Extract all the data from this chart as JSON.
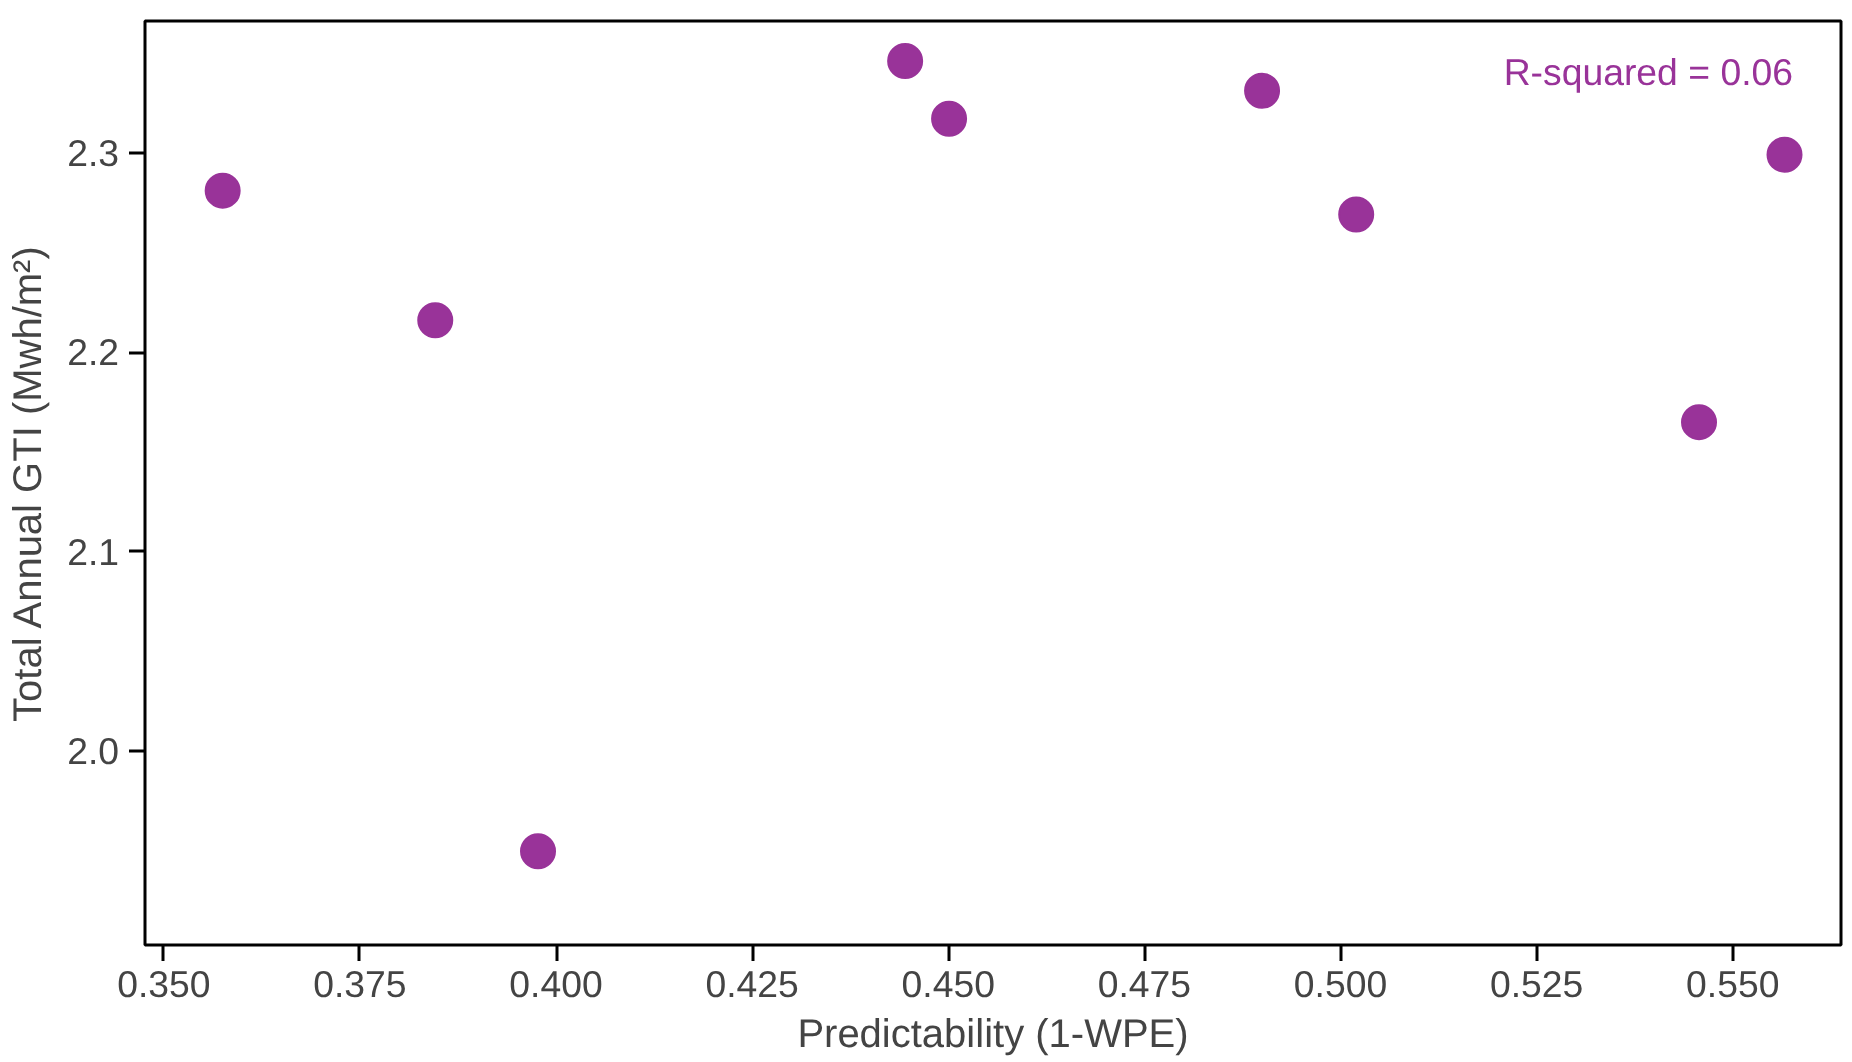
{
  "chart_data": {
    "type": "scatter",
    "xlabel": "Predictability (1-WPE)",
    "ylabel": "Total Annual GTI (Mwh/m²)",
    "x": [
      0.3575,
      0.3846,
      0.3977,
      0.4445,
      0.4501,
      0.49,
      0.502,
      0.5457,
      0.5566
    ],
    "series": [
      {
        "color": "#993399",
        "values": [
          2.281,
          2.216,
          1.95,
          2.346,
          2.317,
          2.331,
          2.269,
          2.165,
          2.299
        ]
      }
    ],
    "xlim": [
      0.3476,
      0.5638
    ],
    "ylim": [
      1.903,
      2.366
    ],
    "xticks": [
      {
        "value": 0.35,
        "label": "0.350"
      },
      {
        "value": 0.375,
        "label": "0.375"
      },
      {
        "value": 0.4,
        "label": "0.400"
      },
      {
        "value": 0.425,
        "label": "0.425"
      },
      {
        "value": 0.45,
        "label": "0.450"
      },
      {
        "value": 0.475,
        "label": "0.475"
      },
      {
        "value": 0.5,
        "label": "0.500"
      },
      {
        "value": 0.525,
        "label": "0.525"
      },
      {
        "value": 0.55,
        "label": "0.550"
      }
    ],
    "yticks": [
      {
        "value": 2.0,
        "label": "2.0"
      },
      {
        "value": 2.1,
        "label": "2.1"
      },
      {
        "value": 2.2,
        "label": "2.2"
      },
      {
        "value": 2.3,
        "label": "2.3"
      }
    ],
    "annotations": [
      "R-squared = 0.06"
    ],
    "grid": false,
    "marker": "circle"
  }
}
